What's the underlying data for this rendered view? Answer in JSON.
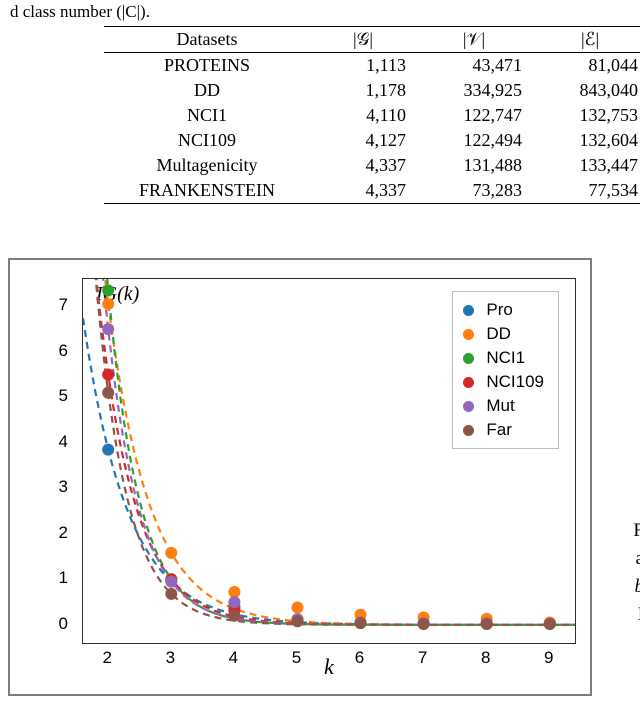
{
  "cutoff_text": "d class number (|C|).",
  "table": {
    "headers": {
      "datasets": "Datasets",
      "g": "|𝒢|",
      "v": "|𝒱|",
      "e": "|ℰ|"
    },
    "rows": [
      {
        "name": "PROTEINS",
        "g": "1,113",
        "v": "43,471",
        "e": "81,044"
      },
      {
        "name": "DD",
        "g": "1,178",
        "v": "334,925",
        "e": "843,040"
      },
      {
        "name": "NCI1",
        "g": "4,110",
        "v": "122,747",
        "e": "132,753"
      },
      {
        "name": "NCI109",
        "g": "4,127",
        "v": "122,494",
        "e": "132,604"
      },
      {
        "name": "Multagenicity",
        "g": "4,337",
        "v": "131,488",
        "e": "133,447"
      },
      {
        "name": "FRANKENSTEIN",
        "g": "4,337",
        "v": "73,283",
        "e": "77,534"
      }
    ]
  },
  "chart": {
    "type": "scatter-with-fitted-curves",
    "title_y": "IG(k)",
    "xlabel": "k",
    "xlim": [
      1.6,
      9.4
    ],
    "ylim": [
      -0.4,
      7.6
    ],
    "xticks": [
      2,
      3,
      4,
      5,
      6,
      7,
      8,
      9
    ],
    "yticks": [
      0,
      1,
      2,
      3,
      4,
      5,
      6,
      7
    ],
    "grid_color": "#e0e0e0",
    "background": "#ffffff",
    "marker_radius": 6,
    "line_width": 2.2,
    "line_dash": "7,5",
    "legend_border": "#bdbdbd",
    "series": [
      {
        "label": "Pro",
        "color": "#1f77b4",
        "points": [
          [
            2,
            3.85
          ],
          [
            3,
            0.95
          ],
          [
            4,
            0.4
          ],
          [
            5,
            0.12
          ],
          [
            6,
            0.05
          ],
          [
            7,
            0.03
          ],
          [
            8,
            0.02
          ],
          [
            9,
            0.02
          ]
        ]
      },
      {
        "label": "DD",
        "color": "#ff7f0e",
        "points": [
          [
            2,
            7.05
          ],
          [
            3,
            1.58
          ],
          [
            4,
            0.72
          ],
          [
            5,
            0.38
          ],
          [
            6,
            0.22
          ],
          [
            7,
            0.16
          ],
          [
            8,
            0.13
          ],
          [
            9,
            0.05
          ]
        ]
      },
      {
        "label": "NCI1",
        "color": "#2ca02c",
        "points": [
          [
            2,
            7.35
          ],
          [
            3,
            1.0
          ],
          [
            4,
            0.35
          ],
          [
            5,
            0.1
          ],
          [
            6,
            0.04
          ],
          [
            7,
            0.02
          ],
          [
            8,
            0.02
          ],
          [
            9,
            0.02
          ]
        ]
      },
      {
        "label": "NCI109",
        "color": "#d62728",
        "points": [
          [
            2,
            5.5
          ],
          [
            3,
            1.0
          ],
          [
            4,
            0.32
          ],
          [
            5,
            0.1
          ],
          [
            6,
            0.04
          ],
          [
            7,
            0.02
          ],
          [
            8,
            0.02
          ],
          [
            9,
            0.02
          ]
        ]
      },
      {
        "label": "Mut",
        "color": "#9467bd",
        "points": [
          [
            2,
            6.5
          ],
          [
            3,
            0.95
          ],
          [
            4,
            0.5
          ],
          [
            5,
            0.12
          ],
          [
            6,
            0.05
          ],
          [
            7,
            0.03
          ],
          [
            8,
            0.03
          ],
          [
            9,
            0.02
          ]
        ]
      },
      {
        "label": "Far",
        "color": "#8c564b",
        "points": [
          [
            2,
            5.1
          ],
          [
            3,
            0.68
          ],
          [
            4,
            0.2
          ],
          [
            5,
            0.08
          ],
          [
            6,
            0.04
          ],
          [
            7,
            0.02
          ],
          [
            8,
            0.02
          ],
          [
            9,
            0.02
          ]
        ]
      }
    ]
  },
  "right_cutoff": {
    "a": "F",
    "b": "a",
    "c": "b",
    "d": "I"
  }
}
